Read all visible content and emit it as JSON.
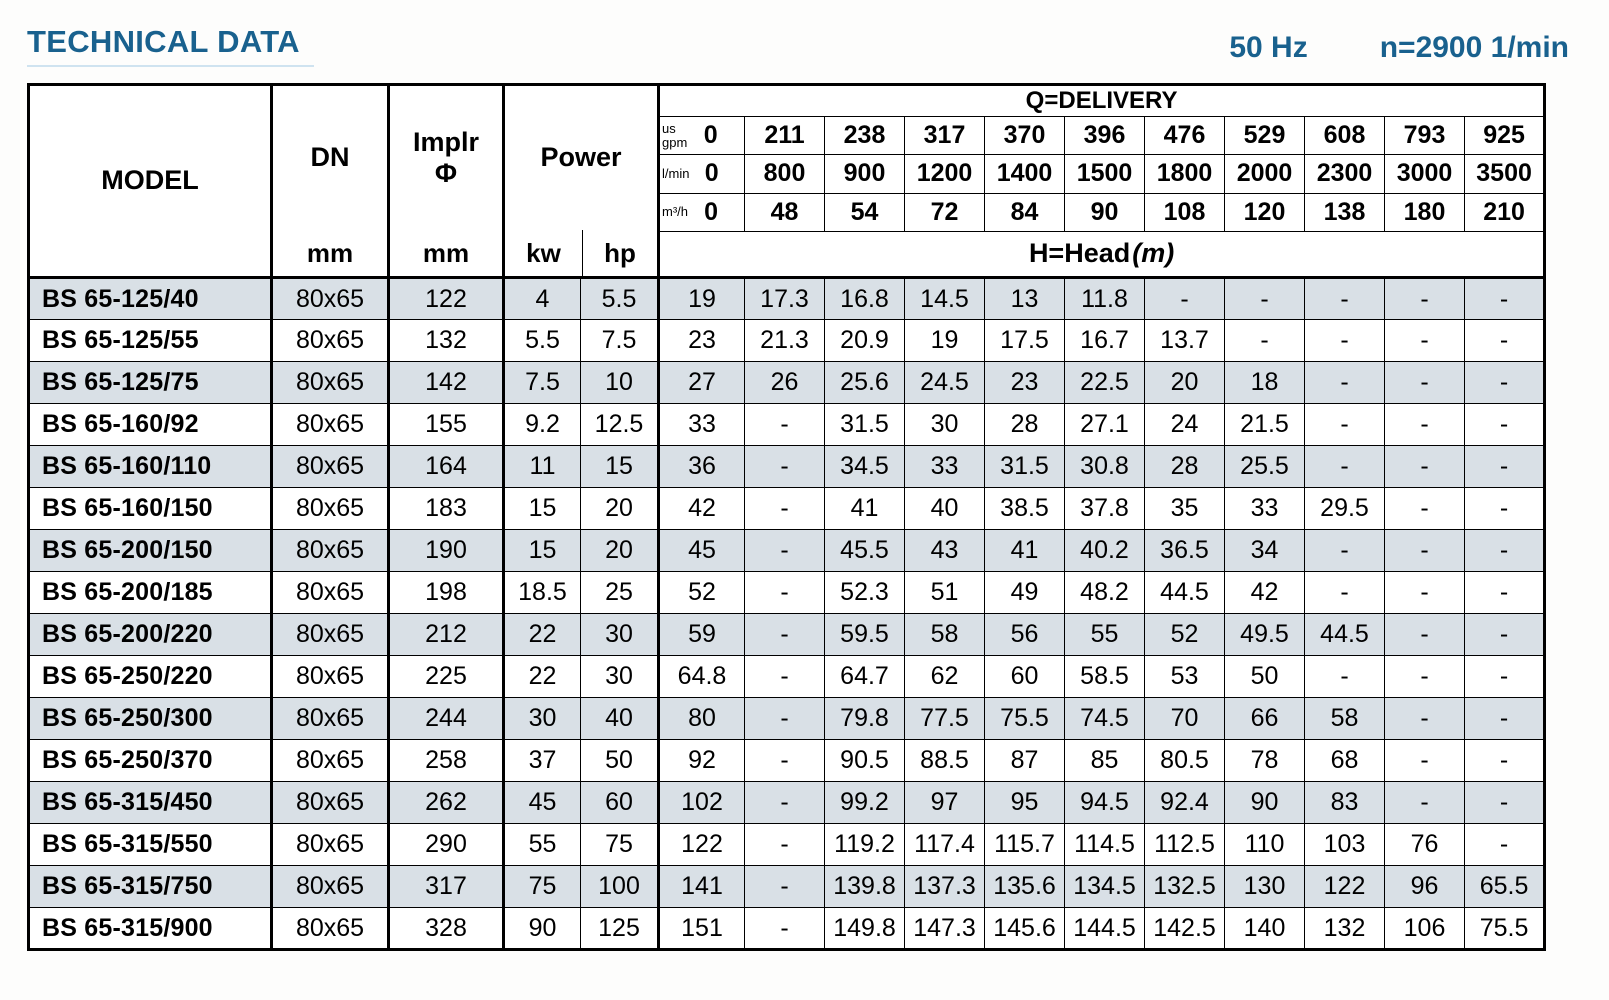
{
  "page": {
    "title": "TECHNICAL DATA",
    "frequency": "50 Hz",
    "speed": "n=2900 1/min"
  },
  "table": {
    "header": {
      "model": "MODEL",
      "dn": "DN",
      "dn_unit": "mm",
      "implr": "Implr",
      "implr_phi": "Φ",
      "implr_unit": "mm",
      "power": "Power",
      "kw": "kw",
      "hp": "hp",
      "delivery": "Q=DELIVERY",
      "head": "H=Head",
      "head_unit": "(m)",
      "unit_rows": [
        {
          "unit": "us\ngpm",
          "values": [
            "0",
            "211",
            "238",
            "317",
            "370",
            "396",
            "476",
            "529",
            "608",
            "793",
            "925"
          ]
        },
        {
          "unit": "l/min",
          "values": [
            "0",
            "800",
            "900",
            "1200",
            "1400",
            "1500",
            "1800",
            "2000",
            "2300",
            "3000",
            "3500"
          ]
        },
        {
          "unit": "m³/h",
          "values": [
            "0",
            "48",
            "54",
            "72",
            "84",
            "90",
            "108",
            "120",
            "138",
            "180",
            "210"
          ]
        }
      ]
    },
    "rows": [
      {
        "model": "BS 65-125/40",
        "dn": "80x65",
        "implr": "122",
        "kw": "4",
        "hp": "5.5",
        "head": [
          "19",
          "17.3",
          "16.8",
          "14.5",
          "13",
          "11.8",
          "-",
          "-",
          "-",
          "-",
          "-"
        ]
      },
      {
        "model": "BS 65-125/55",
        "dn": "80x65",
        "implr": "132",
        "kw": "5.5",
        "hp": "7.5",
        "head": [
          "23",
          "21.3",
          "20.9",
          "19",
          "17.5",
          "16.7",
          "13.7",
          "-",
          "-",
          "-",
          "-"
        ]
      },
      {
        "model": "BS 65-125/75",
        "dn": "80x65",
        "implr": "142",
        "kw": "7.5",
        "hp": "10",
        "head": [
          "27",
          "26",
          "25.6",
          "24.5",
          "23",
          "22.5",
          "20",
          "18",
          "-",
          "-",
          "-"
        ]
      },
      {
        "model": "BS 65-160/92",
        "dn": "80x65",
        "implr": "155",
        "kw": "9.2",
        "hp": "12.5",
        "head": [
          "33",
          "-",
          "31.5",
          "30",
          "28",
          "27.1",
          "24",
          "21.5",
          "-",
          "-",
          "-"
        ]
      },
      {
        "model": "BS 65-160/110",
        "dn": "80x65",
        "implr": "164",
        "kw": "11",
        "hp": "15",
        "head": [
          "36",
          "-",
          "34.5",
          "33",
          "31.5",
          "30.8",
          "28",
          "25.5",
          "-",
          "-",
          "-"
        ]
      },
      {
        "model": "BS 65-160/150",
        "dn": "80x65",
        "implr": "183",
        "kw": "15",
        "hp": "20",
        "head": [
          "42",
          "-",
          "41",
          "40",
          "38.5",
          "37.8",
          "35",
          "33",
          "29.5",
          "-",
          "-"
        ]
      },
      {
        "model": "BS 65-200/150",
        "dn": "80x65",
        "implr": "190",
        "kw": "15",
        "hp": "20",
        "head": [
          "45",
          "-",
          "45.5",
          "43",
          "41",
          "40.2",
          "36.5",
          "34",
          "-",
          "-",
          "-"
        ]
      },
      {
        "model": "BS 65-200/185",
        "dn": "80x65",
        "implr": "198",
        "kw": "18.5",
        "hp": "25",
        "head": [
          "52",
          "-",
          "52.3",
          "51",
          "49",
          "48.2",
          "44.5",
          "42",
          "-",
          "-",
          "-"
        ]
      },
      {
        "model": "BS 65-200/220",
        "dn": "80x65",
        "implr": "212",
        "kw": "22",
        "hp": "30",
        "head": [
          "59",
          "-",
          "59.5",
          "58",
          "56",
          "55",
          "52",
          "49.5",
          "44.5",
          "-",
          "-"
        ]
      },
      {
        "model": "BS 65-250/220",
        "dn": "80x65",
        "implr": "225",
        "kw": "22",
        "hp": "30",
        "head": [
          "64.8",
          "-",
          "64.7",
          "62",
          "60",
          "58.5",
          "53",
          "50",
          "-",
          "-",
          "-"
        ]
      },
      {
        "model": "BS 65-250/300",
        "dn": "80x65",
        "implr": "244",
        "kw": "30",
        "hp": "40",
        "head": [
          "80",
          "-",
          "79.8",
          "77.5",
          "75.5",
          "74.5",
          "70",
          "66",
          "58",
          "-",
          "-"
        ]
      },
      {
        "model": "BS 65-250/370",
        "dn": "80x65",
        "implr": "258",
        "kw": "37",
        "hp": "50",
        "head": [
          "92",
          "-",
          "90.5",
          "88.5",
          "87",
          "85",
          "80.5",
          "78",
          "68",
          "-",
          "-"
        ]
      },
      {
        "model": "BS 65-315/450",
        "dn": "80x65",
        "implr": "262",
        "kw": "45",
        "hp": "60",
        "head": [
          "102",
          "-",
          "99.2",
          "97",
          "95",
          "94.5",
          "92.4",
          "90",
          "83",
          "-",
          "-"
        ]
      },
      {
        "model": "BS 65-315/550",
        "dn": "80x65",
        "implr": "290",
        "kw": "55",
        "hp": "75",
        "head": [
          "122",
          "-",
          "119.2",
          "117.4",
          "115.7",
          "114.5",
          "112.5",
          "110",
          "103",
          "76",
          "-"
        ]
      },
      {
        "model": "BS 65-315/750",
        "dn": "80x65",
        "implr": "317",
        "kw": "75",
        "hp": "100",
        "head": [
          "141",
          "-",
          "139.8",
          "137.3",
          "135.6",
          "134.5",
          "132.5",
          "130",
          "122",
          "96",
          "65.5"
        ]
      },
      {
        "model": "BS 65-315/900",
        "dn": "80x65",
        "implr": "328",
        "kw": "90",
        "hp": "125",
        "head": [
          "151",
          "-",
          "149.8",
          "147.3",
          "145.6",
          "144.5",
          "142.5",
          "140",
          "132",
          "106",
          "75.5"
        ]
      }
    ]
  }
}
